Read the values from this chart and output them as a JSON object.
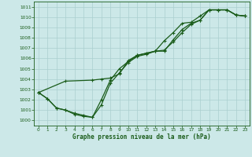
{
  "title": "Graphe pression niveau de la mer (hPa)",
  "bg_color": "#cce8e8",
  "grid_color": "#aacfcf",
  "line_color": "#1a5c1a",
  "xlim": [
    -0.5,
    23.5
  ],
  "ylim": [
    999.5,
    1011.5
  ],
  "xticks": [
    0,
    1,
    2,
    3,
    4,
    5,
    6,
    7,
    8,
    9,
    10,
    11,
    12,
    13,
    14,
    15,
    16,
    17,
    18,
    19,
    20,
    21,
    22,
    23
  ],
  "yticks": [
    1000,
    1001,
    1002,
    1003,
    1004,
    1005,
    1006,
    1007,
    1008,
    1009,
    1010,
    1011
  ],
  "line1_x": [
    0,
    1,
    2,
    3,
    4,
    5,
    6,
    7,
    8,
    9,
    10,
    11,
    12,
    13,
    14,
    15,
    16,
    17,
    18,
    19,
    20,
    21,
    22,
    23
  ],
  "line1_y": [
    1002.7,
    1002.1,
    1001.2,
    1001.0,
    1000.6,
    1000.4,
    1000.3,
    1001.5,
    1003.6,
    1004.6,
    1005.6,
    1006.2,
    1006.4,
    1006.7,
    1006.7,
    1007.8,
    1008.8,
    1009.4,
    1009.7,
    1010.7,
    1010.7,
    1010.7,
    1010.2,
    1010.1
  ],
  "line2_x": [
    0,
    1,
    2,
    3,
    4,
    5,
    6,
    7,
    8,
    9,
    10,
    11,
    12,
    13,
    14,
    15,
    16,
    17,
    18,
    19,
    20,
    21,
    22,
    23
  ],
  "line2_y": [
    1002.7,
    1002.1,
    1001.2,
    1001.0,
    1000.7,
    1000.5,
    1000.3,
    1002.0,
    1003.9,
    1005.0,
    1005.7,
    1006.3,
    1006.5,
    1006.7,
    1006.8,
    1007.6,
    1008.5,
    1009.3,
    1009.7,
    1010.7,
    1010.7,
    1010.7,
    1010.2,
    1010.1
  ],
  "line3_x": [
    0,
    3,
    6,
    7,
    8,
    9,
    10,
    11,
    12,
    13,
    14,
    15,
    16,
    17,
    18,
    19,
    20,
    21,
    22,
    23
  ],
  "line3_y": [
    1002.7,
    1003.8,
    1003.9,
    1004.0,
    1004.1,
    1004.5,
    1005.8,
    1006.3,
    1006.5,
    1006.7,
    1007.7,
    1008.5,
    1009.4,
    1009.5,
    1010.1,
    1010.7,
    1010.7,
    1010.7,
    1010.2,
    1010.1
  ],
  "marker": "+",
  "markersize": 3.0,
  "linewidth": 0.9
}
